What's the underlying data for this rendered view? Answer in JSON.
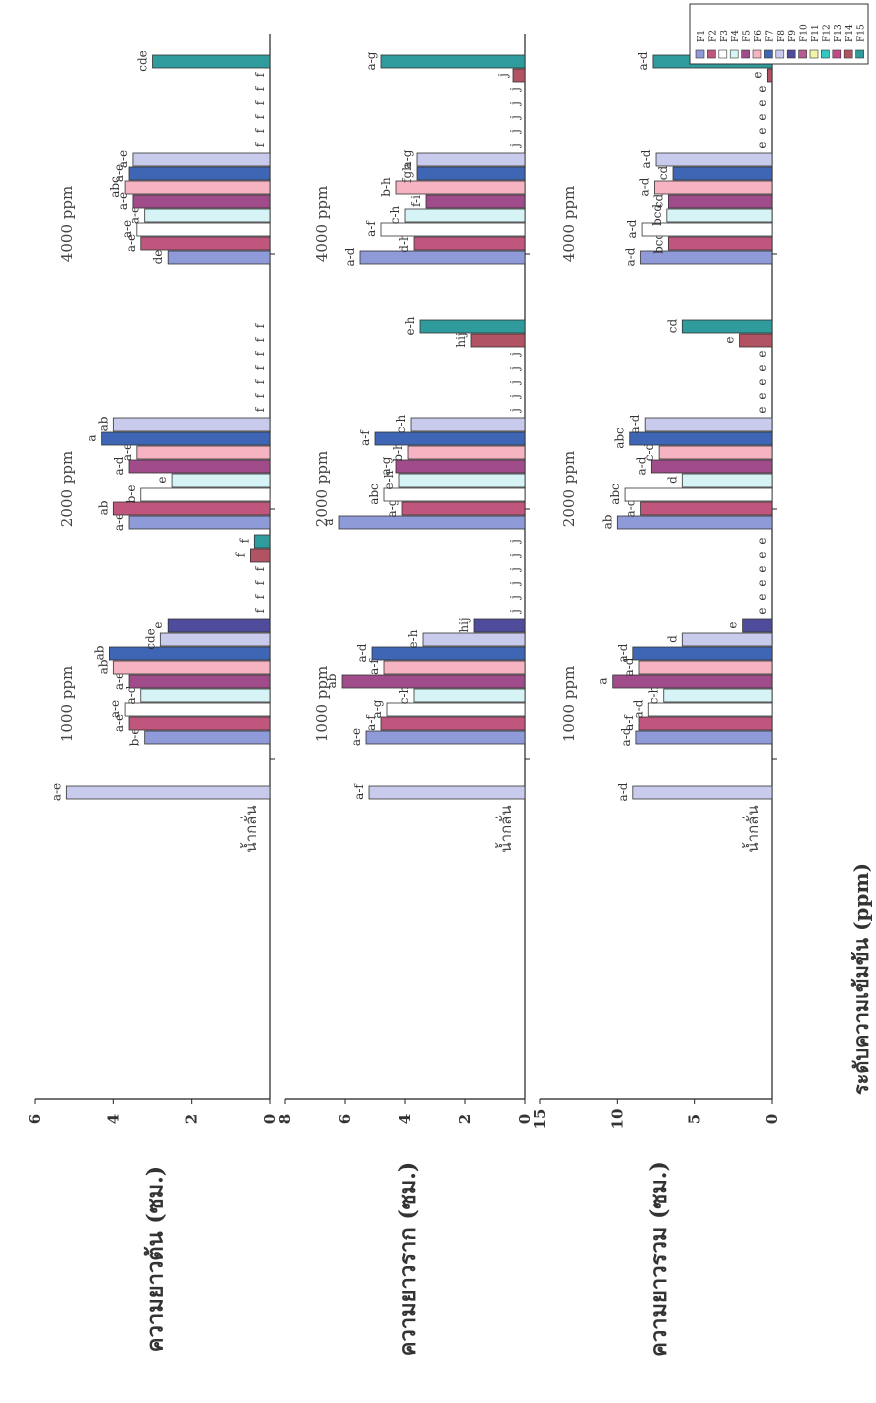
{
  "series_colors": [
    "#8f9ad8",
    "#c0567e",
    "#ffffff",
    "#d6f4f6",
    "#a04b8a",
    "#f6b4c3",
    "#3e66b5",
    "#c9cbed",
    "#4f4c9b",
    "#b85b90",
    "#f2f4a8",
    "#2fc9c0",
    "#c3498a",
    "#b25363",
    "#2f9b9c"
  ],
  "chart_data": [
    {
      "type": "bar",
      "ylabel": "ความยาวต้น (ซม.)",
      "ylim": [
        0,
        6
      ],
      "yticks": [
        "0",
        "2",
        "4",
        "6"
      ],
      "groups": [
        {
          "label": "น้ำกลั่น",
          "values": [
            5.2
          ],
          "letters": [
            "a-e"
          ]
        },
        {
          "label": "1000 ppm",
          "values": [
            3.2,
            3.6,
            3.7,
            3.3,
            3.6,
            4.0,
            4.1,
            2.8,
            2.6,
            0,
            0,
            0,
            0,
            0.5,
            0.4
          ],
          "letters": [
            "b-e",
            "a-e",
            "a-e",
            "a-d",
            "a-e",
            "ab",
            "ab",
            "cde",
            "e",
            "f",
            "f",
            "f",
            "f",
            "f",
            "f"
          ]
        },
        {
          "label": "2000 ppm",
          "values": [
            3.6,
            4.0,
            3.3,
            2.5,
            3.6,
            3.4,
            4.3,
            4.0,
            0,
            0,
            0,
            0,
            0,
            0,
            0
          ],
          "letters": [
            "a-e",
            "ab",
            "b-e",
            "e",
            "a-d",
            "a-e",
            "a",
            "ab",
            "f",
            "f",
            "f",
            "f",
            "f",
            "f",
            "f"
          ]
        },
        {
          "label": "4000 ppm",
          "values": [
            2.6,
            3.3,
            3.4,
            3.2,
            3.5,
            3.7,
            3.6,
            3.5,
            0,
            0,
            0,
            0,
            0,
            0,
            3.0
          ],
          "letters": [
            "de",
            "a-e",
            "a-e",
            "a-e",
            "a-e",
            "abc",
            "a-e",
            "a-e",
            "f",
            "f",
            "f",
            "f",
            "f",
            "f",
            "cde"
          ]
        }
      ]
    },
    {
      "type": "bar",
      "ylabel": "ความยาวราก (ซม.)",
      "ylim": [
        0,
        8
      ],
      "yticks": [
        "0",
        "2",
        "4",
        "6",
        "8"
      ],
      "groups": [
        {
          "label": "น้ำกลั่น",
          "values": [
            5.2
          ],
          "letters": [
            "a-f"
          ]
        },
        {
          "label": "1000 ppm",
          "values": [
            5.3,
            4.8,
            4.6,
            3.7,
            6.1,
            4.7,
            5.1,
            3.4,
            1.7,
            0,
            0,
            0,
            0,
            0,
            0
          ],
          "letters": [
            "a-e",
            "a-f",
            "a-g",
            "c-h",
            "ab",
            "a-f",
            "a-d",
            "e-h",
            "hij",
            "j",
            "j",
            "j",
            "j",
            "j",
            "j"
          ]
        },
        {
          "label": "2000 ppm",
          "values": [
            6.2,
            4.1,
            4.7,
            4.2,
            4.3,
            3.9,
            5.0,
            3.8,
            0,
            0,
            0,
            0,
            0,
            1.8,
            3.5
          ],
          "letters": [
            "a",
            "a-g",
            "abc",
            "e-h",
            "a-g",
            "b-h",
            "a-f",
            "c-h",
            "j",
            "j",
            "j",
            "j",
            "j",
            "hij",
            "e-h"
          ]
        },
        {
          "label": "4000 ppm",
          "values": [
            5.5,
            3.7,
            4.8,
            4.0,
            3.3,
            4.3,
            3.6,
            3.6,
            0,
            0,
            0,
            0,
            0,
            0.4,
            4.8
          ],
          "letters": [
            "a-d",
            "d-h",
            "a-f",
            "c-h",
            "f-i",
            "b-h",
            "fgh",
            "a-g",
            "j",
            "j",
            "j",
            "j",
            "j",
            "j",
            "a-g"
          ]
        }
      ]
    },
    {
      "type": "bar",
      "ylabel": "ความยาวรวม (ซม.)",
      "ylim": [
        0,
        15
      ],
      "yticks": [
        "0",
        "5",
        "10",
        "15"
      ],
      "groups": [
        {
          "label": "น้ำกลั่น",
          "values": [
            9.0
          ],
          "letters": [
            "a-d"
          ]
        },
        {
          "label": "1000 ppm",
          "values": [
            8.8,
            8.6,
            8.0,
            7.0,
            10.3,
            8.6,
            9.0,
            5.8,
            1.9,
            0,
            0,
            0,
            0,
            0,
            0
          ],
          "letters": [
            "a-d",
            "a-f",
            "a-d",
            "c-h",
            "a",
            "a-d",
            "a-d",
            "d",
            "e",
            "e",
            "e",
            "e",
            "e",
            "e",
            "e"
          ]
        },
        {
          "label": "2000 ppm",
          "values": [
            10.0,
            8.5,
            9.5,
            5.8,
            7.8,
            7.3,
            9.2,
            8.2,
            0,
            0,
            0,
            0,
            0,
            2.1,
            5.8
          ],
          "letters": [
            "ab",
            "a-d",
            "abc",
            "d",
            "a-d",
            "c-d",
            "abc",
            "a-d",
            "e",
            "e",
            "e",
            "e",
            "e",
            "e",
            "cd"
          ]
        },
        {
          "label": "4000 ppm",
          "values": [
            8.5,
            6.7,
            8.4,
            6.8,
            6.7,
            7.6,
            6.4,
            7.5,
            0,
            0,
            0,
            0,
            0,
            0.3,
            7.7
          ],
          "letters": [
            "a-d",
            "bcd",
            "a-d",
            "bcd",
            "cd",
            "a-d",
            "cd",
            "a-d",
            "e",
            "e",
            "e",
            "e",
            "e",
            "e",
            "a-d"
          ]
        }
      ]
    }
  ],
  "x_title": "ระดับความเข้มข้น (ppm)",
  "legend": [
    "F1",
    "F2",
    "F3",
    "F4",
    "F5",
    "F6",
    "F7",
    "F8",
    "F9",
    "F10",
    "F11",
    "F12",
    "F13",
    "F14",
    "F15"
  ]
}
